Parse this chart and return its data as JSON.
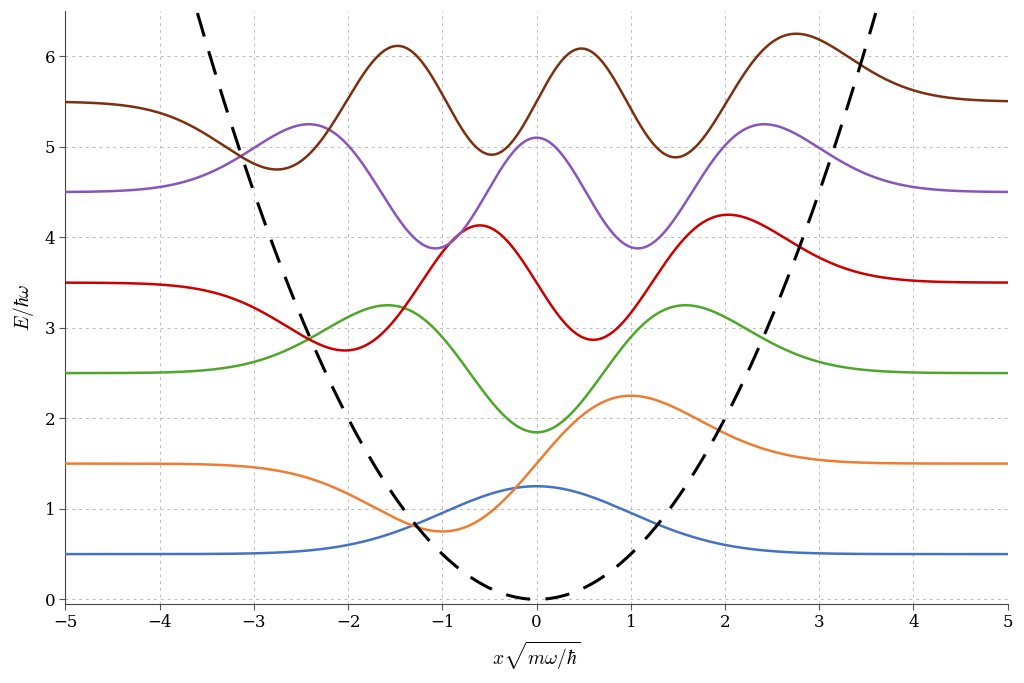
{
  "title": "",
  "xlabel": "x\\sqrt{m\\omega/\\hbar}",
  "ylabel": "E/\\hbar\\omega",
  "xlim": [
    -5,
    5
  ],
  "ylim": [
    -0.05,
    6.5
  ],
  "xticks": [
    -5,
    -4,
    -3,
    -2,
    -1,
    0,
    1,
    2,
    3,
    4,
    5
  ],
  "yticks": [
    0,
    1,
    2,
    3,
    4,
    5,
    6
  ],
  "n_levels": 6,
  "energy_levels": [
    0.5,
    1.5,
    2.5,
    3.5,
    4.5,
    5.5
  ],
  "colors": [
    "#4472C4",
    "#ED7D31",
    "#4EA72A",
    "#CC0000",
    "#8855BB",
    "#7B3010"
  ],
  "amplitude_scale": 0.75,
  "potential_color": "#000000",
  "background_color": "#ffffff",
  "grid_color": "#bbbbbb",
  "figsize": [
    10.24,
    6.83
  ],
  "dpi": 100
}
